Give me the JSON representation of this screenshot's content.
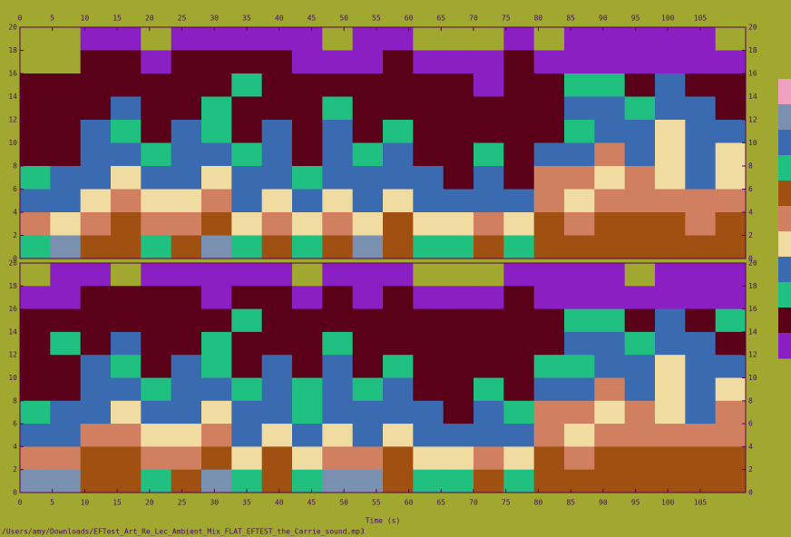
{
  "chart_data": {
    "type": "heatmap",
    "x_label": "Time (s)",
    "file_path": "/Users/amy/Downloads/EFTest_Art_Re_Lec_Ambient_Mix_FLAT_EFTEST_the_Carrie_sound.mp3",
    "xlim": [
      0,
      112
    ],
    "xticks": [
      0,
      5,
      10,
      15,
      20,
      25,
      30,
      35,
      40,
      45,
      50,
      55,
      60,
      65,
      70,
      75,
      80,
      85,
      90,
      95,
      100,
      105
    ],
    "ylim": [
      0,
      20
    ],
    "yticks": [
      0,
      2,
      4,
      6,
      8,
      10,
      12,
      14,
      16,
      18,
      20
    ],
    "colormap": [
      "#a0a830",
      "#8a1fc4",
      "#5a0018",
      "#20c080",
      "#3a6ab0",
      "#f0dca0",
      "#d08060",
      "#a05010",
      "#7a90b0"
    ],
    "colorbar": [
      "#f0a0c0",
      "#7a90b0",
      "#3a6ab0",
      "#20c080",
      "#a05010",
      "#d08060",
      "#f0dca0",
      "#3a6ab0",
      "#20c080",
      "#5a0018",
      "#8a1fc4"
    ],
    "channels": [
      {
        "z": [
          [
            0,
            0,
            1,
            1,
            0,
            1,
            1,
            1,
            1,
            1,
            0,
            1,
            1,
            0,
            0,
            0,
            1,
            0,
            1,
            1,
            1,
            1,
            1,
            0
          ],
          [
            0,
            0,
            2,
            2,
            1,
            2,
            2,
            2,
            2,
            1,
            1,
            1,
            2,
            1,
            1,
            1,
            2,
            1,
            1,
            1,
            1,
            1,
            1,
            1
          ],
          [
            2,
            2,
            2,
            2,
            2,
            2,
            2,
            3,
            2,
            2,
            2,
            2,
            2,
            2,
            2,
            1,
            2,
            2,
            3,
            3,
            2,
            4,
            2,
            2
          ],
          [
            2,
            2,
            2,
            4,
            2,
            2,
            3,
            2,
            2,
            2,
            3,
            2,
            2,
            2,
            2,
            2,
            2,
            2,
            4,
            4,
            3,
            4,
            4,
            2
          ],
          [
            2,
            2,
            4,
            3,
            2,
            4,
            3,
            2,
            4,
            2,
            4,
            2,
            3,
            2,
            2,
            2,
            2,
            2,
            3,
            4,
            4,
            5,
            4,
            4
          ],
          [
            2,
            2,
            4,
            4,
            3,
            4,
            4,
            3,
            4,
            2,
            4,
            3,
            4,
            2,
            2,
            3,
            2,
            4,
            4,
            6,
            4,
            5,
            4,
            5
          ],
          [
            3,
            4,
            4,
            5,
            4,
            4,
            5,
            4,
            4,
            3,
            4,
            4,
            4,
            4,
            2,
            4,
            2,
            6,
            6,
            5,
            6,
            5,
            4,
            5
          ],
          [
            4,
            4,
            5,
            6,
            5,
            5,
            6,
            4,
            5,
            4,
            5,
            4,
            5,
            4,
            4,
            4,
            4,
            6,
            5,
            6,
            6,
            6,
            6,
            6
          ],
          [
            6,
            5,
            6,
            7,
            6,
            6,
            7,
            5,
            6,
            5,
            6,
            5,
            7,
            5,
            5,
            6,
            5,
            7,
            6,
            7,
            7,
            7,
            6,
            7
          ],
          [
            3,
            8,
            7,
            7,
            3,
            7,
            8,
            3,
            7,
            3,
            7,
            8,
            7,
            3,
            3,
            7,
            3,
            7,
            7,
            7,
            7,
            7,
            7,
            7
          ]
        ]
      },
      {
        "z": [
          [
            0,
            1,
            1,
            0,
            1,
            1,
            1,
            1,
            1,
            0,
            1,
            1,
            1,
            0,
            0,
            0,
            1,
            1,
            1,
            1,
            0,
            1,
            1,
            1
          ],
          [
            1,
            1,
            2,
            2,
            2,
            2,
            1,
            2,
            2,
            1,
            2,
            1,
            2,
            1,
            1,
            1,
            2,
            1,
            1,
            1,
            1,
            1,
            1,
            1
          ],
          [
            2,
            2,
            2,
            2,
            2,
            2,
            2,
            3,
            2,
            2,
            2,
            2,
            2,
            2,
            2,
            2,
            2,
            2,
            3,
            3,
            2,
            4,
            2,
            3
          ],
          [
            2,
            3,
            2,
            4,
            2,
            2,
            3,
            2,
            2,
            2,
            3,
            2,
            2,
            2,
            2,
            2,
            2,
            2,
            4,
            4,
            3,
            4,
            4,
            2
          ],
          [
            2,
            2,
            4,
            3,
            2,
            4,
            3,
            2,
            4,
            2,
            4,
            2,
            3,
            2,
            2,
            2,
            2,
            3,
            3,
            4,
            4,
            5,
            4,
            4
          ],
          [
            2,
            2,
            4,
            4,
            3,
            4,
            4,
            3,
            4,
            3,
            4,
            3,
            4,
            2,
            2,
            3,
            2,
            4,
            4,
            6,
            4,
            5,
            4,
            5
          ],
          [
            3,
            4,
            4,
            5,
            4,
            4,
            5,
            4,
            4,
            3,
            4,
            4,
            4,
            4,
            2,
            4,
            3,
            6,
            6,
            5,
            6,
            5,
            4,
            6
          ],
          [
            4,
            4,
            6,
            6,
            5,
            5,
            6,
            4,
            5,
            4,
            5,
            4,
            5,
            4,
            4,
            4,
            4,
            6,
            5,
            6,
            6,
            6,
            6,
            6
          ],
          [
            6,
            6,
            7,
            7,
            6,
            6,
            7,
            5,
            7,
            5,
            6,
            6,
            7,
            5,
            5,
            6,
            5,
            7,
            6,
            7,
            7,
            7,
            7,
            7
          ],
          [
            8,
            8,
            7,
            7,
            3,
            7,
            8,
            3,
            7,
            3,
            8,
            8,
            7,
            3,
            3,
            7,
            3,
            7,
            7,
            7,
            7,
            7,
            7,
            7
          ]
        ]
      }
    ]
  }
}
